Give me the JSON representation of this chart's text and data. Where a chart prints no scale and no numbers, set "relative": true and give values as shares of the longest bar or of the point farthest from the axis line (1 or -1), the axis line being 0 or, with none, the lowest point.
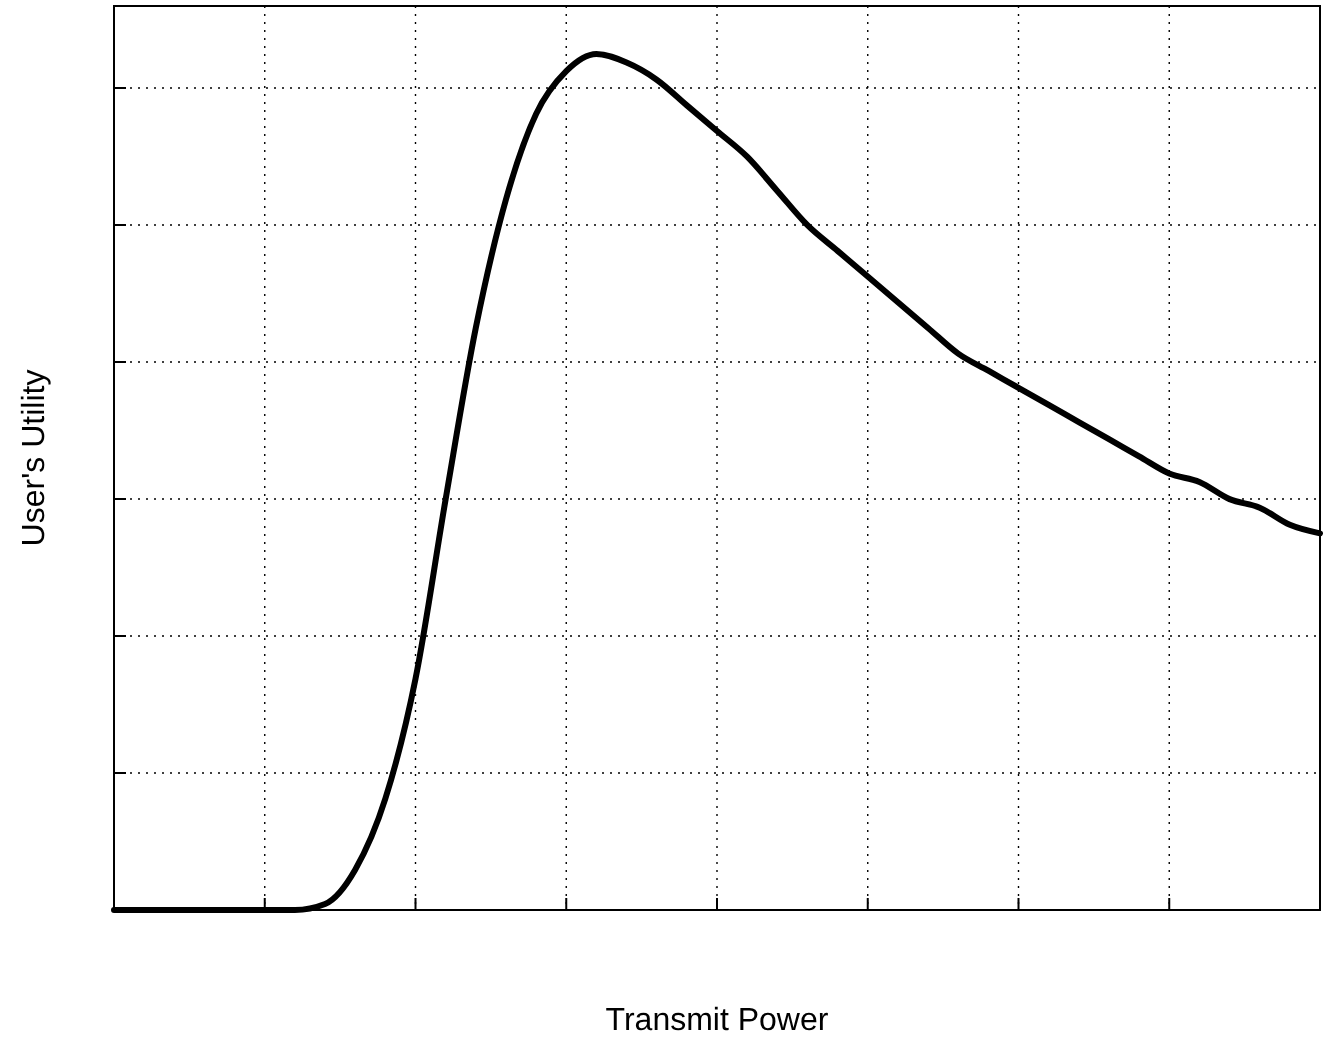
{
  "chart_data": {
    "type": "line",
    "xlabel": "Transmit Power",
    "ylabel": "User's Utility",
    "relative": true,
    "grid": true,
    "marker": "none",
    "line_style": "solid",
    "categories": [
      null,
      null,
      null,
      null,
      null,
      null,
      null,
      null,
      null,
      null,
      null,
      null,
      null,
      null,
      null,
      null,
      null,
      null,
      null,
      null,
      null,
      null,
      null,
      null,
      null,
      null,
      null,
      null,
      null,
      null,
      null,
      null,
      null,
      null,
      null,
      null,
      null,
      null,
      null,
      null,
      null
    ],
    "series": [
      {
        "color": "#000000",
        "values": [
          0,
          0,
          0,
          0,
          0,
          0,
          0,
          0.007,
          0.047,
          0.13,
          0.27,
          0.48,
          0.68,
          0.83,
          0.93,
          0.98,
          1,
          0.99,
          0.97,
          0.94,
          0.91,
          0.88,
          0.84,
          0.8,
          0.77,
          0.74,
          0.71,
          0.68,
          0.65,
          0.63,
          0.61,
          0.59,
          0.57,
          0.55,
          0.53,
          0.51,
          0.5,
          0.48,
          0.47,
          0.45,
          0.44
        ]
      }
    ]
  }
}
